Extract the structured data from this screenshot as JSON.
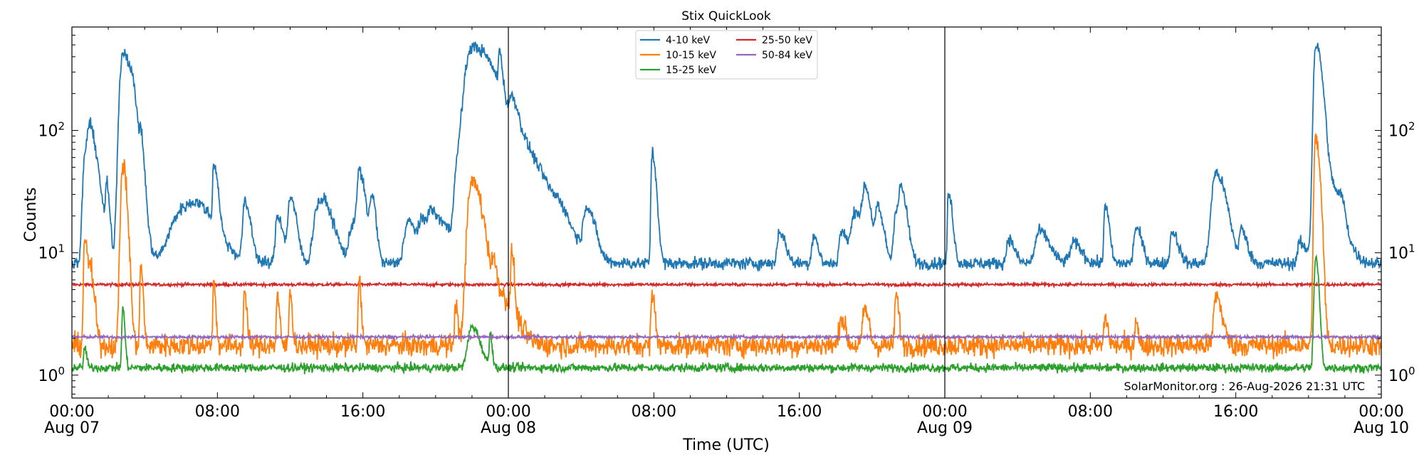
{
  "chart_data": {
    "type": "line",
    "title": "Stix QuickLook",
    "xlabel": "Time (UTC)",
    "ylabel": "Counts",
    "yscale": "log",
    "ylim": [
      0.65,
      700
    ],
    "xlim_hours": [
      0,
      72
    ],
    "grid": false,
    "legend_position": "top-center",
    "annotation": "SolarMonitor.org : 26-Aug-2026 21:31 UTC",
    "x_ticks": [
      {
        "hour": 0,
        "lines": [
          "00:00",
          "Aug 07"
        ]
      },
      {
        "hour": 8,
        "lines": [
          "08:00"
        ]
      },
      {
        "hour": 16,
        "lines": [
          "16:00"
        ]
      },
      {
        "hour": 24,
        "lines": [
          "00:00",
          "Aug 08"
        ]
      },
      {
        "hour": 32,
        "lines": [
          "08:00"
        ]
      },
      {
        "hour": 40,
        "lines": [
          "16:00"
        ]
      },
      {
        "hour": 48,
        "lines": [
          "00:00",
          "Aug 09"
        ]
      },
      {
        "hour": 56,
        "lines": [
          "08:00"
        ]
      },
      {
        "hour": 64,
        "lines": [
          "16:00"
        ]
      },
      {
        "hour": 72,
        "lines": [
          "00:00",
          "Aug 10"
        ]
      }
    ],
    "y_ticks": [
      {
        "value": 1,
        "base": "10",
        "exp": "0"
      },
      {
        "value": 10,
        "base": "10",
        "exp": "1"
      },
      {
        "value": 100,
        "base": "10",
        "exp": "2"
      }
    ],
    "day_boundaries_hours": [
      24,
      48
    ],
    "series": [
      {
        "name": "4-10 keV",
        "color": "#1f77b4",
        "baseline": 8.2,
        "noise": 0.05,
        "peaks": [
          [
            0.7,
            52,
            0.1,
            0.3
          ],
          [
            1.0,
            85,
            0.15,
            0.4
          ],
          [
            1.9,
            33,
            0.05,
            0.15
          ],
          [
            2.8,
            440,
            0.15,
            0.5
          ],
          [
            3.3,
            33,
            0.1,
            0.2
          ],
          [
            3.8,
            45,
            0.05,
            0.15
          ],
          [
            6.1,
            22,
            0.6,
            1.2
          ],
          [
            7.0,
            15,
            0.5,
            1.0
          ],
          [
            7.8,
            45,
            0.05,
            0.2
          ],
          [
            9.5,
            25,
            0.1,
            0.3
          ],
          [
            11.3,
            20,
            0.1,
            0.3
          ],
          [
            12.0,
            28,
            0.1,
            0.3
          ],
          [
            13.5,
            22,
            0.2,
            0.4
          ],
          [
            14.0,
            19,
            0.3,
            0.5
          ],
          [
            15.5,
            18,
            0.2,
            0.4
          ],
          [
            15.8,
            40,
            0.1,
            0.3
          ],
          [
            16.5,
            28,
            0.1,
            0.2
          ],
          [
            18.5,
            18,
            0.2,
            0.4
          ],
          [
            19.3,
            17,
            0.2,
            0.4
          ],
          [
            19.8,
            18,
            0.2,
            0.4
          ],
          [
            20.5,
            15,
            0.3,
            0.5
          ],
          [
            21.1,
            28,
            0.1,
            0.3
          ],
          [
            22.0,
            480,
            0.35,
            1.0
          ],
          [
            23.0,
            60,
            0.4,
            1.2
          ],
          [
            23.5,
            220,
            0.05,
            0.15
          ],
          [
            23.9,
            48,
            0.6,
            1.2
          ],
          [
            24.2,
            78,
            0.1,
            0.3
          ],
          [
            25.0,
            35,
            0.5,
            1.5
          ],
          [
            26.8,
            12,
            0.2,
            0.4
          ],
          [
            28.3,
            22,
            0.15,
            0.4
          ],
          [
            31.9,
            65,
            0.05,
            0.2
          ],
          [
            38.9,
            15,
            0.1,
            0.3
          ],
          [
            40.8,
            14,
            0.1,
            0.2
          ],
          [
            42.3,
            15,
            0.1,
            0.3
          ],
          [
            43.1,
            22,
            0.2,
            0.5
          ],
          [
            43.6,
            28,
            0.1,
            0.3
          ],
          [
            44.3,
            22,
            0.1,
            0.3
          ],
          [
            45.3,
            22,
            0.1,
            0.3
          ],
          [
            45.6,
            27,
            0.1,
            0.3
          ],
          [
            48.2,
            30,
            0.05,
            0.2
          ],
          [
            51.5,
            13,
            0.1,
            0.3
          ],
          [
            53.2,
            15,
            0.2,
            0.5
          ],
          [
            55.1,
            12,
            0.2,
            0.4
          ],
          [
            56.8,
            25,
            0.05,
            0.2
          ],
          [
            58.5,
            16,
            0.1,
            0.3
          ],
          [
            60.5,
            15,
            0.1,
            0.3
          ],
          [
            62.9,
            45,
            0.2,
            0.5
          ],
          [
            64.3,
            15,
            0.1,
            0.3
          ],
          [
            67.5,
            12,
            0.1,
            0.3
          ],
          [
            68.4,
            480,
            0.1,
            0.3
          ],
          [
            68.7,
            40,
            0.3,
            0.8
          ],
          [
            69.4,
            13,
            0.1,
            0.3
          ],
          [
            69.8,
            16,
            0.1,
            0.2
          ]
        ]
      },
      {
        "name": "10-15 keV",
        "color": "#ff7f0e",
        "baseline": 1.75,
        "noise": 0.09,
        "peaks": [
          [
            0.7,
            14,
            0.05,
            0.15
          ],
          [
            1.0,
            7,
            0.05,
            0.2
          ],
          [
            2.8,
            52,
            0.1,
            0.2
          ],
          [
            3.8,
            8,
            0.05,
            0.1
          ],
          [
            7.8,
            5.5,
            0.05,
            0.1
          ],
          [
            9.5,
            5,
            0.05,
            0.1
          ],
          [
            11.3,
            4.5,
            0.05,
            0.1
          ],
          [
            12.0,
            5,
            0.05,
            0.1
          ],
          [
            15.8,
            6,
            0.05,
            0.1
          ],
          [
            21.1,
            4,
            0.05,
            0.1
          ],
          [
            22.0,
            38,
            0.2,
            0.5
          ],
          [
            23.0,
            3.5,
            0.5,
            1.0
          ],
          [
            23.2,
            5,
            0.1,
            0.2
          ],
          [
            23.8,
            3,
            0.3,
            0.6
          ],
          [
            24.2,
            9,
            0.05,
            0.1
          ],
          [
            31.9,
            4.5,
            0.05,
            0.15
          ],
          [
            42.3,
            3,
            0.1,
            0.2
          ],
          [
            43.6,
            3.5,
            0.1,
            0.2
          ],
          [
            45.3,
            4.5,
            0.05,
            0.15
          ],
          [
            56.8,
            3,
            0.05,
            0.15
          ],
          [
            58.5,
            3,
            0.05,
            0.1
          ],
          [
            62.9,
            4.5,
            0.1,
            0.3
          ],
          [
            68.4,
            85,
            0.08,
            0.2
          ]
        ]
      },
      {
        "name": "15-25 keV",
        "color": "#2ca02c",
        "baseline": 1.15,
        "noise": 0.035,
        "peaks": [
          [
            0.7,
            1.7,
            0.05,
            0.1
          ],
          [
            2.8,
            3.5,
            0.05,
            0.1
          ],
          [
            22.0,
            2.5,
            0.2,
            0.4
          ],
          [
            23.0,
            2.2,
            0.05,
            0.1
          ],
          [
            68.4,
            9,
            0.08,
            0.15
          ]
        ]
      },
      {
        "name": "25-50 keV",
        "color": "#d62728",
        "baseline": 5.5,
        "noise": 0.012,
        "peaks": []
      },
      {
        "name": "50-84 keV",
        "color": "#9467bd",
        "baseline": 2.05,
        "noise": 0.012,
        "peaks": []
      }
    ]
  }
}
